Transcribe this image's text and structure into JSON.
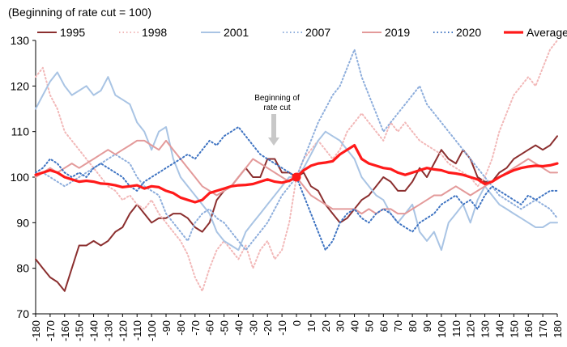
{
  "chart_data": {
    "type": "line",
    "unit_note": "(Beginning of rate cut = 100)",
    "annotation": [
      "Beginning of",
      "rate cut"
    ],
    "xlim": [
      -180,
      180
    ],
    "ylim": [
      70,
      130
    ],
    "x_ticks": [
      -180,
      -170,
      -160,
      -150,
      -140,
      -130,
      -120,
      -110,
      -100,
      -90,
      -80,
      -70,
      -60,
      -50,
      -40,
      -30,
      -20,
      -10,
      0,
      10,
      20,
      30,
      40,
      50,
      60,
      70,
      80,
      90,
      100,
      110,
      120,
      130,
      140,
      150,
      160,
      170,
      180
    ],
    "y_ticks": [
      70,
      80,
      90,
      100,
      110,
      120,
      130
    ],
    "grid": false,
    "legend_position": "top",
    "series": [
      {
        "name": "1995",
        "color": "#8b2f2f",
        "style": "solid",
        "width": 2,
        "x": [
          -180,
          -175,
          -170,
          -165,
          -160,
          -155,
          -150,
          -145,
          -140,
          -135,
          -130,
          -125,
          -120,
          -115,
          -110,
          -105,
          -100,
          -95,
          -90,
          -85,
          -80,
          -75,
          -70,
          -65,
          -60,
          -55,
          -50,
          -45,
          -40,
          -35,
          -30,
          -25,
          -20,
          -15,
          -10,
          -5,
          0,
          5,
          10,
          15,
          20,
          25,
          30,
          35,
          40,
          45,
          50,
          55,
          60,
          65,
          70,
          75,
          80,
          85,
          90,
          95,
          100,
          105,
          110,
          115,
          120,
          125,
          130,
          135,
          140,
          145,
          150,
          155,
          160,
          165,
          170,
          175,
          180
        ],
        "values": [
          82,
          80,
          78,
          77,
          75,
          80,
          85,
          85,
          86,
          85,
          86,
          88,
          89,
          92,
          94,
          92,
          90,
          91,
          91,
          92,
          92,
          91,
          89,
          88,
          90,
          95,
          97,
          98,
          100,
          102,
          100,
          100,
          104,
          104,
          101,
          101,
          100,
          101,
          98,
          97,
          94,
          92,
          90,
          91,
          93,
          95,
          96,
          98,
          100,
          99,
          97,
          97,
          99,
          102,
          100,
          103,
          106,
          104,
          103,
          106,
          104,
          100,
          99,
          99,
          101,
          102,
          104,
          105,
          106,
          107,
          106,
          107,
          109
        ]
      },
      {
        "name": "1998",
        "color": "#f2b8b8",
        "style": "dotted",
        "width": 2,
        "x": [
          -180,
          -175,
          -170,
          -165,
          -160,
          -155,
          -150,
          -145,
          -140,
          -135,
          -130,
          -125,
          -120,
          -115,
          -110,
          -105,
          -100,
          -95,
          -90,
          -85,
          -80,
          -75,
          -70,
          -65,
          -60,
          -55,
          -50,
          -45,
          -40,
          -35,
          -30,
          -25,
          -20,
          -15,
          -10,
          -5,
          0,
          5,
          10,
          15,
          20,
          25,
          30,
          35,
          40,
          45,
          50,
          55,
          60,
          65,
          70,
          75,
          80,
          85,
          90,
          95,
          100,
          105,
          110,
          115,
          120,
          125,
          130,
          135,
          140,
          145,
          150,
          155,
          160,
          165,
          170,
          175,
          180
        ],
        "values": [
          122,
          124,
          118,
          115,
          110,
          108,
          106,
          104,
          102,
          100,
          98,
          97,
          95,
          96,
          94,
          93,
          95,
          92,
          90,
          88,
          86,
          83,
          78,
          75,
          80,
          84,
          86,
          84,
          82,
          85,
          80,
          84,
          86,
          82,
          84,
          90,
          100,
          104,
          106,
          108,
          106,
          104,
          106,
          110,
          112,
          114,
          112,
          110,
          108,
          112,
          110,
          112,
          110,
          108,
          107,
          106,
          105,
          103,
          102,
          101,
          100,
          98,
          100,
          104,
          110,
          114,
          118,
          120,
          122,
          120,
          124,
          128,
          130
        ]
      },
      {
        "name": "2001",
        "color": "#a9c4e4",
        "style": "solid",
        "width": 2,
        "x": [
          -180,
          -175,
          -170,
          -165,
          -160,
          -155,
          -150,
          -145,
          -140,
          -135,
          -130,
          -125,
          -120,
          -115,
          -110,
          -105,
          -100,
          -95,
          -90,
          -85,
          -80,
          -75,
          -70,
          -65,
          -60,
          -55,
          -50,
          -45,
          -40,
          -35,
          -30,
          -25,
          -20,
          -15,
          -10,
          -5,
          0,
          5,
          10,
          15,
          20,
          25,
          30,
          35,
          40,
          45,
          50,
          55,
          60,
          65,
          70,
          75,
          80,
          85,
          90,
          95,
          100,
          105,
          110,
          115,
          120,
          125,
          130,
          135,
          140,
          145,
          150,
          155,
          160,
          165,
          170,
          175,
          180
        ],
        "values": [
          115,
          118,
          121,
          123,
          120,
          118,
          119,
          120,
          118,
          119,
          122,
          118,
          117,
          116,
          112,
          110,
          106,
          110,
          111,
          104,
          100,
          98,
          96,
          94,
          92,
          88,
          86,
          85,
          84,
          88,
          90,
          92,
          94,
          96,
          98,
          100,
          100,
          102,
          105,
          108,
          110,
          109,
          108,
          106,
          104,
          100,
          98,
          96,
          95,
          92,
          90,
          92,
          94,
          88,
          86,
          88,
          84,
          90,
          92,
          94,
          90,
          95,
          98,
          96,
          94,
          93,
          92,
          91,
          90,
          89,
          89,
          90,
          90
        ]
      },
      {
        "name": "2007",
        "color": "#8eaedc",
        "style": "dotted",
        "width": 2,
        "x": [
          -180,
          -175,
          -170,
          -165,
          -160,
          -155,
          -150,
          -145,
          -140,
          -135,
          -130,
          -125,
          -120,
          -115,
          -110,
          -105,
          -100,
          -95,
          -90,
          -85,
          -80,
          -75,
          -70,
          -65,
          -60,
          -55,
          -50,
          -45,
          -40,
          -35,
          -30,
          -25,
          -20,
          -15,
          -10,
          -5,
          0,
          5,
          10,
          15,
          20,
          25,
          30,
          35,
          40,
          45,
          50,
          55,
          60,
          65,
          70,
          75,
          80,
          85,
          90,
          95,
          100,
          105,
          110,
          115,
          120,
          125,
          130,
          135,
          140,
          145,
          150,
          155,
          160,
          165,
          170,
          175,
          180
        ],
        "values": [
          100,
          101,
          100,
          99,
          98,
          99,
          100,
          101,
          102,
          103,
          104,
          105,
          104,
          103,
          100,
          98,
          97,
          96,
          92,
          90,
          88,
          86,
          90,
          92,
          93,
          91,
          90,
          88,
          86,
          84,
          86,
          88,
          90,
          93,
          96,
          98,
          100,
          104,
          108,
          112,
          115,
          118,
          120,
          124,
          128,
          122,
          118,
          114,
          110,
          112,
          114,
          116,
          118,
          120,
          116,
          114,
          112,
          110,
          108,
          106,
          104,
          102,
          100,
          98,
          96,
          95,
          94,
          93,
          94,
          95,
          94,
          93,
          91
        ]
      },
      {
        "name": "2019",
        "color": "#e39a9a",
        "style": "solid",
        "width": 2,
        "x": [
          -180,
          -175,
          -170,
          -165,
          -160,
          -155,
          -150,
          -145,
          -140,
          -135,
          -130,
          -125,
          -120,
          -115,
          -110,
          -105,
          -100,
          -95,
          -90,
          -85,
          -80,
          -75,
          -70,
          -65,
          -60,
          -55,
          -50,
          -45,
          -40,
          -35,
          -30,
          -25,
          -20,
          -15,
          -10,
          -5,
          0,
          5,
          10,
          15,
          20,
          25,
          30,
          35,
          40,
          45,
          50,
          55,
          60,
          65,
          70,
          75,
          80,
          85,
          90,
          95,
          100,
          105,
          110,
          115,
          120,
          125,
          130,
          135,
          140,
          145,
          150,
          155,
          160,
          165,
          170,
          175,
          180
        ],
        "values": [
          100,
          101,
          102,
          101,
          102,
          103,
          102,
          103,
          104,
          105,
          106,
          105,
          106,
          107,
          108,
          108,
          107,
          106,
          108,
          106,
          104,
          102,
          100,
          98,
          97,
          96,
          97,
          98,
          100,
          102,
          104,
          103,
          102,
          101,
          100,
          99,
          100,
          98,
          96,
          95,
          94,
          93,
          93,
          93,
          93,
          92,
          93,
          92,
          93,
          93,
          92,
          92,
          93,
          94,
          95,
          96,
          96,
          97,
          98,
          97,
          96,
          97,
          98,
          99,
          100,
          101,
          102,
          103,
          104,
          103,
          102,
          101,
          101
        ]
      },
      {
        "name": "2020",
        "color": "#3f74c2",
        "style": "dotted",
        "width": 2,
        "x": [
          -180,
          -175,
          -170,
          -165,
          -160,
          -155,
          -150,
          -145,
          -140,
          -135,
          -130,
          -125,
          -120,
          -115,
          -110,
          -105,
          -100,
          -95,
          -90,
          -85,
          -80,
          -75,
          -70,
          -65,
          -60,
          -55,
          -50,
          -45,
          -40,
          -35,
          -30,
          -25,
          -20,
          -15,
          -10,
          -5,
          0,
          5,
          10,
          15,
          20,
          25,
          30,
          35,
          40,
          45,
          50,
          55,
          60,
          65,
          70,
          75,
          80,
          85,
          90,
          95,
          100,
          105,
          110,
          115,
          120,
          125,
          130,
          135,
          140,
          145,
          150,
          155,
          160,
          165,
          170,
          175,
          180
        ],
        "values": [
          101,
          102,
          104,
          103,
          101,
          100,
          101,
          100,
          102,
          103,
          102,
          101,
          100,
          98,
          97,
          99,
          100,
          101,
          102,
          103,
          104,
          105,
          104,
          106,
          108,
          107,
          109,
          110,
          111,
          109,
          107,
          105,
          104,
          103,
          102,
          101,
          100,
          96,
          92,
          88,
          84,
          86,
          90,
          92,
          93,
          91,
          90,
          92,
          93,
          92,
          90,
          89,
          88,
          90,
          91,
          92,
          94,
          95,
          96,
          94,
          95,
          93,
          96,
          98,
          97,
          96,
          95,
          94,
          96,
          95,
          96,
          97,
          97
        ]
      },
      {
        "name": "Average",
        "color": "#ff1a1a",
        "style": "solid",
        "width": 3.2,
        "x": [
          -180,
          -175,
          -170,
          -165,
          -160,
          -155,
          -150,
          -145,
          -140,
          -135,
          -130,
          -125,
          -120,
          -115,
          -110,
          -105,
          -100,
          -95,
          -90,
          -85,
          -80,
          -75,
          -70,
          -65,
          -60,
          -55,
          -50,
          -45,
          -40,
          -35,
          -30,
          -25,
          -20,
          -15,
          -10,
          -5,
          0,
          5,
          10,
          15,
          20,
          25,
          30,
          35,
          40,
          45,
          50,
          55,
          60,
          65,
          70,
          75,
          80,
          85,
          90,
          95,
          100,
          105,
          110,
          115,
          120,
          125,
          130,
          135,
          140,
          145,
          150,
          155,
          160,
          165,
          170,
          175,
          180
        ],
        "values": [
          100.5,
          101,
          101.5,
          101,
          100,
          99.5,
          99,
          99.2,
          99,
          98.6,
          98.5,
          98.2,
          97.8,
          98,
          98.2,
          97.5,
          98,
          97.8,
          97,
          96.5,
          95.5,
          95,
          94.5,
          95,
          96.5,
          97,
          97.5,
          98,
          98.2,
          98.3,
          98.5,
          99,
          99.5,
          99,
          98.8,
          99.2,
          100,
          101.5,
          102.5,
          103,
          103.2,
          103.5,
          105,
          106,
          107,
          104,
          103,
          102.5,
          102,
          101.8,
          101,
          100.5,
          101,
          101.5,
          102,
          101.7,
          101.5,
          101,
          100.8,
          100.5,
          100,
          99.5,
          98.5,
          99,
          100,
          100.8,
          101.5,
          102,
          102.3,
          102.5,
          102.4,
          102.6,
          103
        ]
      }
    ],
    "marker": {
      "x": 0,
      "y": 100,
      "color": "#ff1a1a"
    }
  }
}
